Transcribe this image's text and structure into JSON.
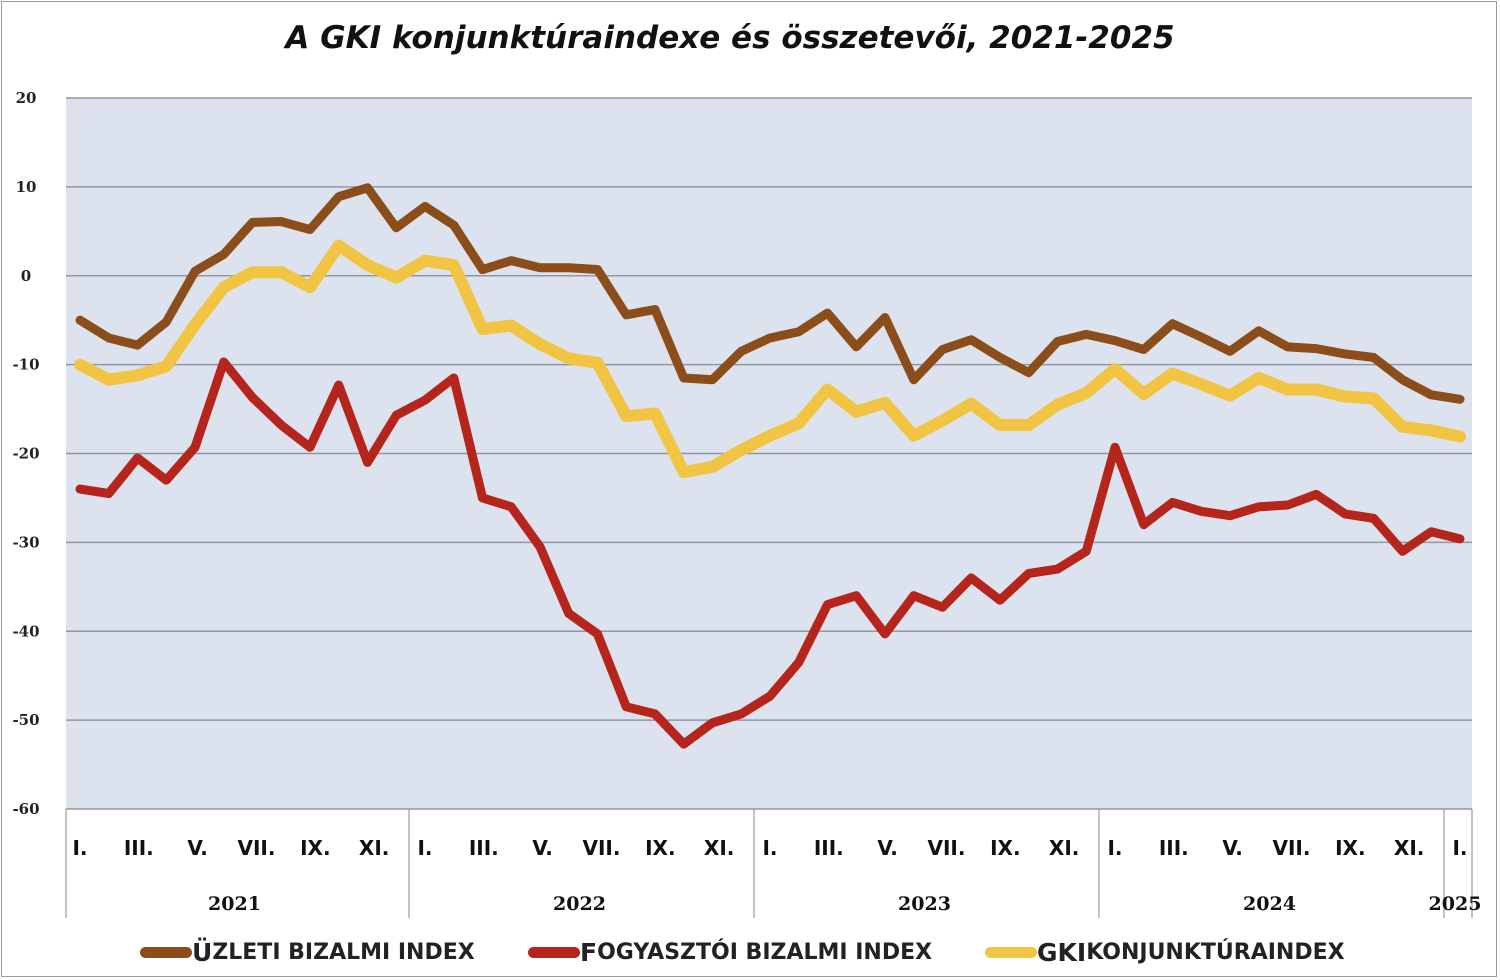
{
  "chart_data": {
    "type": "line",
    "title": "A GKI konjunktúraindexe és összetevői, 2021-2025",
    "xlabel": "",
    "ylabel": "",
    "ylim": [
      -60,
      20
    ],
    "yticks": [
      20,
      10,
      0,
      -10,
      -20,
      -30,
      -40,
      -50,
      -60
    ],
    "grid": true,
    "legend_position": "bottom",
    "month_labels": [
      "I.",
      "III.",
      "V.",
      "VII.",
      "IX.",
      "XI."
    ],
    "years": [
      "2021",
      "2022",
      "2023",
      "2024",
      "2025"
    ],
    "x": [
      "2021-01",
      "2021-02",
      "2021-03",
      "2021-04",
      "2021-05",
      "2021-06",
      "2021-07",
      "2021-08",
      "2021-09",
      "2021-10",
      "2021-11",
      "2021-12",
      "2022-01",
      "2022-02",
      "2022-03",
      "2022-04",
      "2022-05",
      "2022-06",
      "2022-07",
      "2022-08",
      "2022-09",
      "2022-10",
      "2022-11",
      "2022-12",
      "2023-01",
      "2023-02",
      "2023-03",
      "2023-04",
      "2023-05",
      "2023-06",
      "2023-07",
      "2023-08",
      "2023-09",
      "2023-10",
      "2023-11",
      "2023-12",
      "2024-01",
      "2024-02",
      "2024-03",
      "2024-04",
      "2024-05",
      "2024-06",
      "2024-07",
      "2024-08",
      "2024-09",
      "2024-10",
      "2024-11",
      "2024-12",
      "2025-01"
    ],
    "series": [
      {
        "name": "Üzleti bizalmi index",
        "legend_first": "Ü",
        "legend_rest": "ZLETI BIZALMI INDEX",
        "color": "#8B4E1B",
        "values": [
          -5.0,
          -7.0,
          -7.8,
          -5.2,
          0.5,
          2.4,
          6.0,
          6.1,
          5.2,
          8.9,
          9.9,
          5.4,
          7.8,
          5.7,
          0.7,
          1.7,
          0.9,
          0.9,
          0.7,
          -4.4,
          -3.8,
          -11.5,
          -11.7,
          -8.5,
          -7.0,
          -6.3,
          -4.2,
          -8.0,
          -4.7,
          -11.7,
          -8.3,
          -7.2,
          -9.2,
          -10.9,
          -7.4,
          -6.6,
          -7.3,
          -8.3,
          -5.4,
          -6.9,
          -8.5,
          -6.2,
          -8.0,
          -8.2,
          -8.8,
          -9.2,
          -11.7,
          -13.4,
          -13.9
        ]
      },
      {
        "name": "Fogyasztói bizalmi index",
        "legend_first": "F",
        "legend_rest": "OGYASZTÓI BIZALMI INDEX",
        "color": "#B5251B",
        "values": [
          -24.0,
          -24.5,
          -20.5,
          -23.0,
          -19.3,
          -9.7,
          -13.7,
          -16.8,
          -19.3,
          -12.3,
          -21.0,
          -15.7,
          -14.0,
          -11.5,
          -25.0,
          -26.0,
          -30.5,
          -38.0,
          -40.3,
          -48.5,
          -49.3,
          -52.7,
          -50.3,
          -49.3,
          -47.3,
          -43.5,
          -37.0,
          -36.0,
          -40.3,
          -36.0,
          -37.3,
          -34.0,
          -36.5,
          -33.5,
          -33.0,
          -31.0,
          -19.3,
          -28.0,
          -25.5,
          -26.5,
          -27.0,
          -26.0,
          -25.8,
          -24.6,
          -26.8,
          -27.3,
          -31.0,
          -28.8,
          -29.6
        ]
      },
      {
        "name": "GKI konjunktúraindex",
        "legend_first": "GKI",
        "legend_rest": " KONJUNKTÚRAINDEX",
        "color": "#F2C444",
        "values": [
          -10.0,
          -11.7,
          -11.2,
          -10.2,
          -5.5,
          -1.3,
          0.4,
          0.4,
          -1.3,
          3.4,
          1.2,
          -0.2,
          1.7,
          1.2,
          -6.0,
          -5.6,
          -7.7,
          -9.3,
          -9.8,
          -15.8,
          -15.5,
          -22.1,
          -21.5,
          -19.6,
          -18.0,
          -16.6,
          -12.8,
          -15.3,
          -14.3,
          -18.0,
          -16.3,
          -14.4,
          -16.8,
          -16.8,
          -14.5,
          -13.2,
          -10.5,
          -13.3,
          -11.0,
          -12.2,
          -13.5,
          -11.5,
          -12.8,
          -12.8,
          -13.6,
          -13.8,
          -17.0,
          -17.4,
          -18.1
        ]
      }
    ]
  }
}
